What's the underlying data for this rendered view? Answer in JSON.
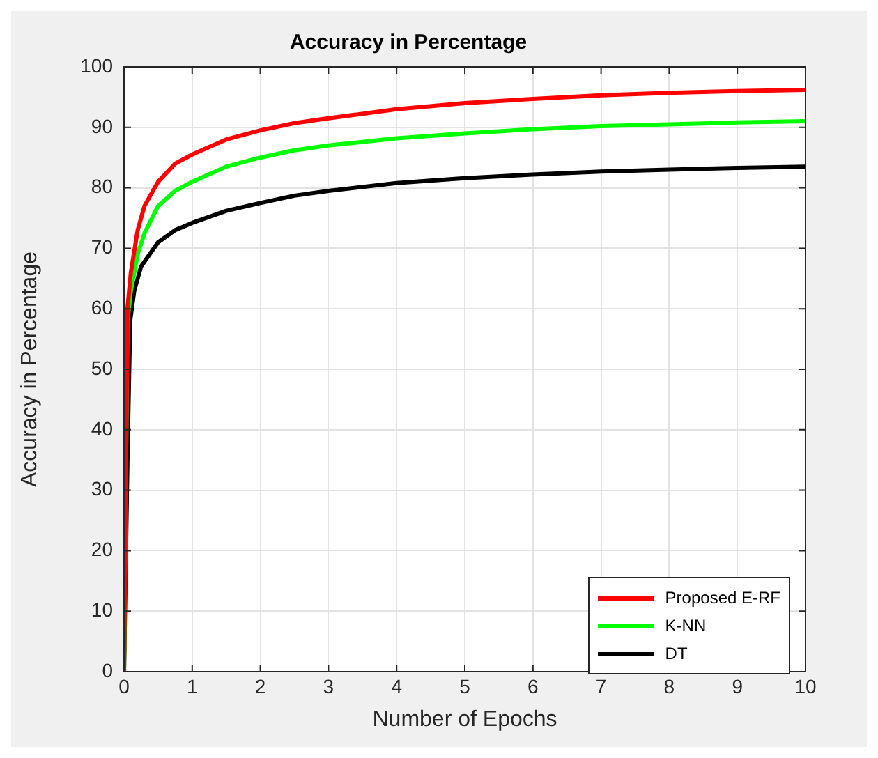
{
  "chart_data": {
    "type": "line",
    "title": "Accuracy in Percentage",
    "xlabel": "Number of Epochs",
    "ylabel": "Accuracy in Percentage",
    "xlim": [
      0,
      10
    ],
    "ylim": [
      0,
      100
    ],
    "xticks": [
      0,
      1,
      2,
      3,
      4,
      5,
      6,
      7,
      8,
      9,
      10
    ],
    "yticks": [
      0,
      10,
      20,
      30,
      40,
      50,
      60,
      70,
      80,
      90,
      100
    ],
    "grid": true,
    "legend": "bottom right",
    "marker": "none",
    "line_style": "solid",
    "series": [
      {
        "name": "Proposed E-RF",
        "color": "#ff0000",
        "x": [
          0,
          0.05,
          0.1,
          0.2,
          0.3,
          0.5,
          0.75,
          1,
          1.5,
          2,
          2.5,
          3,
          4,
          5,
          6,
          7,
          8,
          9,
          10
        ],
        "values": [
          0,
          60,
          66,
          73,
          77,
          81,
          84,
          85.5,
          88,
          89.5,
          90.7,
          91.5,
          93,
          94,
          94.7,
          95.3,
          95.7,
          96,
          96.2
        ]
      },
      {
        "name": "K-NN",
        "color": "#00ff00",
        "x": [
          0,
          0.05,
          0.1,
          0.2,
          0.3,
          0.5,
          0.75,
          1,
          1.5,
          2,
          2.5,
          3,
          4,
          5,
          6,
          7,
          8,
          9,
          10
        ],
        "values": [
          0,
          58,
          63,
          69,
          72.5,
          77,
          79.5,
          81,
          83.5,
          85,
          86.2,
          87,
          88.2,
          89,
          89.7,
          90.2,
          90.5,
          90.8,
          91
        ]
      },
      {
        "name": "DT",
        "color": "#000000",
        "x": [
          0,
          0.05,
          0.09,
          0.15,
          0.25,
          0.5,
          0.75,
          1,
          1.5,
          2,
          2.5,
          3,
          4,
          5,
          6,
          7,
          8,
          9,
          10
        ],
        "values": [
          0,
          35,
          58,
          63,
          67,
          71,
          73,
          74.2,
          76.2,
          77.5,
          78.7,
          79.5,
          80.8,
          81.6,
          82.2,
          82.7,
          83,
          83.3,
          83.5
        ]
      }
    ]
  }
}
